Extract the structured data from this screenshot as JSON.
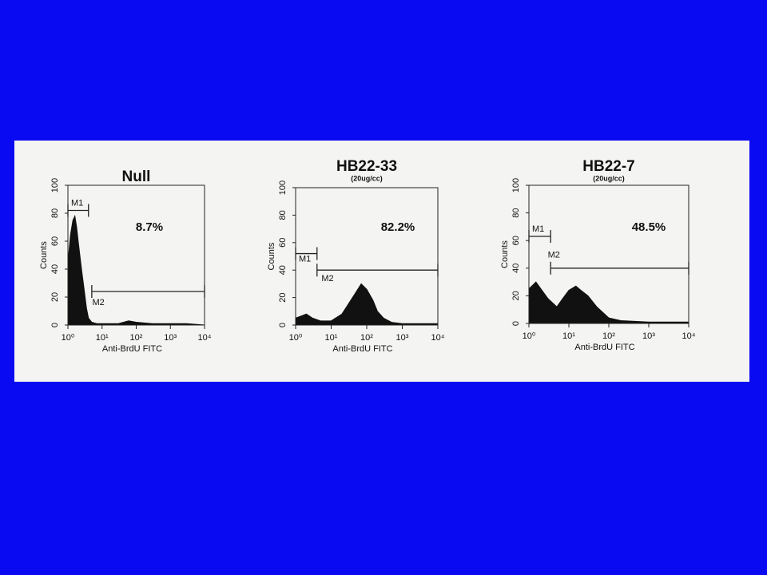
{
  "chart_data": [
    {
      "type": "area",
      "title": "Null",
      "x_label": "Anti-BrdU FITC",
      "y_label": "Counts",
      "xscale": "log",
      "color": "#111111",
      "x": [
        1,
        1.2,
        1.4,
        1.6,
        1.8,
        2,
        2.5,
        3,
        3.5,
        4,
        5,
        7,
        10,
        30,
        60,
        100,
        300,
        1000,
        3000,
        10000
      ],
      "values": [
        45,
        65,
        75,
        78,
        70,
        60,
        40,
        25,
        12,
        5,
        2,
        1,
        1,
        1,
        3,
        2,
        1,
        1,
        1,
        0
      ],
      "xlim": [
        1,
        10000
      ],
      "ylim": [
        0,
        100
      ],
      "xticks": [
        {
          "value": 1,
          "label": "10⁰"
        },
        {
          "value": 10,
          "label": "10¹"
        },
        {
          "value": 100,
          "label": "10²"
        },
        {
          "value": 1000,
          "label": "10³"
        },
        {
          "value": 10000,
          "label": "10⁴"
        }
      ],
      "yticks": [
        0,
        20,
        40,
        60,
        80,
        100
      ],
      "markers": [
        {
          "label": "M1",
          "range": [
            1,
            4
          ],
          "y": 82
        },
        {
          "label": "M2",
          "range": [
            5,
            10000
          ],
          "y": 24
        }
      ],
      "annotation": "8.7%"
    },
    {
      "type": "area",
      "title": "HB22-33",
      "subtitle": "(20ug/cc)",
      "x_label": "Anti-BrdU FITC",
      "y_label": "Counts",
      "xscale": "log",
      "color": "#111111",
      "x": [
        1,
        2,
        3,
        5,
        10,
        20,
        30,
        50,
        70,
        100,
        150,
        200,
        300,
        500,
        1000,
        10000
      ],
      "values": [
        5,
        8,
        5,
        3,
        3,
        8,
        15,
        24,
        30,
        26,
        18,
        10,
        5,
        2,
        1,
        1
      ],
      "xlim": [
        1,
        10000
      ],
      "ylim": [
        0,
        100
      ],
      "xticks": [
        {
          "value": 1,
          "label": "10⁰"
        },
        {
          "value": 10,
          "label": "10¹"
        },
        {
          "value": 100,
          "label": "10²"
        },
        {
          "value": 1000,
          "label": "10³"
        },
        {
          "value": 10000,
          "label": "10⁴"
        }
      ],
      "yticks": [
        0,
        20,
        40,
        60,
        80,
        100
      ],
      "markers": [
        {
          "label": "M1",
          "range": [
            1,
            4
          ],
          "y": 52
        },
        {
          "label": "M2",
          "range": [
            4,
            10000
          ],
          "y": 40
        }
      ],
      "annotation": "82.2%"
    },
    {
      "type": "area",
      "title": "HB22-7",
      "subtitle": "(20ug/cc)",
      "x_label": "Anti-BrdU FITC",
      "y_label": "Counts",
      "xscale": "log",
      "color": "#111111",
      "x": [
        1,
        1.5,
        2,
        3,
        5,
        7,
        10,
        15,
        20,
        30,
        50,
        100,
        200,
        1000,
        10000
      ],
      "values": [
        25,
        30,
        25,
        18,
        12,
        18,
        24,
        27,
        24,
        20,
        12,
        4,
        2,
        1,
        1
      ],
      "xlim": [
        1,
        10000
      ],
      "ylim": [
        0,
        100
      ],
      "xticks": [
        {
          "value": 1,
          "label": "10⁰"
        },
        {
          "value": 10,
          "label": "10¹"
        },
        {
          "value": 100,
          "label": "10²"
        },
        {
          "value": 1000,
          "label": "10³"
        },
        {
          "value": 10000,
          "label": "10⁴"
        }
      ],
      "yticks": [
        0,
        20,
        40,
        60,
        80,
        100
      ],
      "markers": [
        {
          "label": "M1",
          "range": [
            1,
            3.5
          ],
          "y": 63
        },
        {
          "label": "M2",
          "range": [
            3.5,
            10000
          ],
          "y": 40
        }
      ],
      "annotation": "48.5%"
    }
  ]
}
